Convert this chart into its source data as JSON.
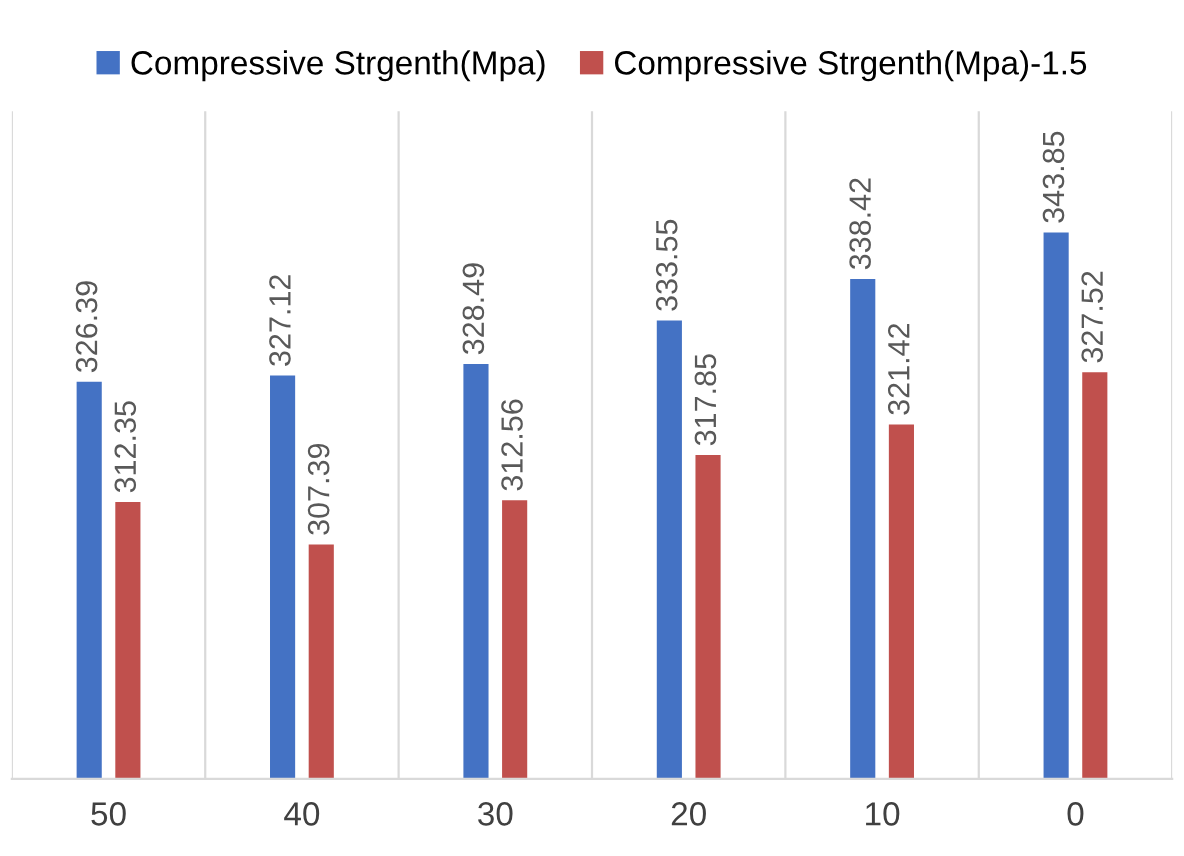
{
  "chart_data": {
    "type": "bar",
    "categories": [
      "50",
      "40",
      "30",
      "20",
      "10",
      "0"
    ],
    "series": [
      {
        "name": "Compressive Strgenth(Mpa)",
        "color": "#4472c4",
        "values": [
          326.39,
          327.12,
          328.49,
          333.55,
          338.42,
          343.85
        ]
      },
      {
        "name": "Compressive Strgenth(Mpa)-1.5",
        "color": "#c0504d",
        "values": [
          312.35,
          307.39,
          312.56,
          317.85,
          321.42,
          327.52
        ]
      }
    ],
    "ylim": [
      280,
      358
    ],
    "tick_labels": "x",
    "data_labels": true,
    "legend": "top",
    "grid": "x"
  }
}
